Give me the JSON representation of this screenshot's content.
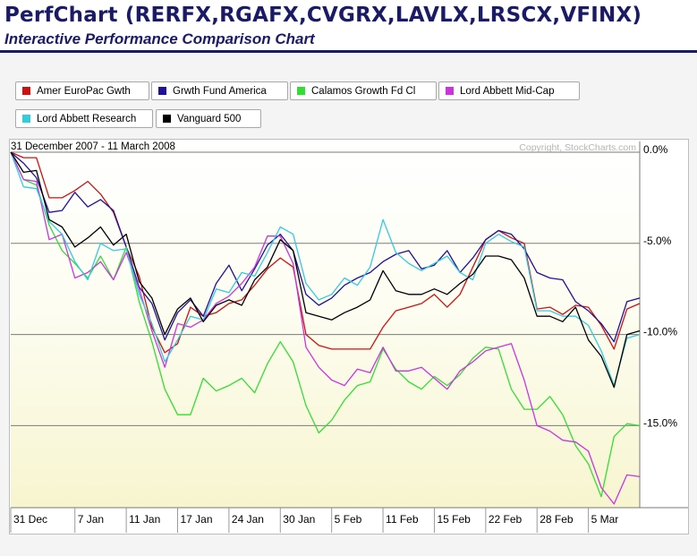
{
  "header": {
    "title": "PerfChart (RERFX,RGAFX,CVGRX,LAVLX,LRSCX,VFINX)",
    "subtitle": "Interactive Performance Comparison Chart"
  },
  "legend": [
    {
      "label": "Amer EuroPac Gwth",
      "color": "#d01010"
    },
    {
      "label": "Grwth Fund America",
      "color": "#20109a"
    },
    {
      "label": "Calamos Growth Fd Cl",
      "color": "#33dd33"
    },
    {
      "label": "Lord Abbett Mid-Cap",
      "color": "#cc33dd"
    },
    {
      "label": "Lord Abbett Research",
      "color": "#33ccdd"
    },
    {
      "label": "Vanguard 500",
      "color": "#000000"
    }
  ],
  "chart_data": {
    "type": "line",
    "date_range": "31 December 2007 - 11 March 2008",
    "copyright": "Copyright, StockCharts.com",
    "yticks": [
      0,
      -5,
      -10,
      -15
    ],
    "ytick_labels": [
      "0.0%",
      "-5.0%",
      "-10.0%",
      "-15.0%"
    ],
    "ylim": [
      -19.5,
      0
    ],
    "xticks": [
      {
        "label": "31 Dec",
        "i": 0
      },
      {
        "label": "7 Jan",
        "i": 5
      },
      {
        "label": "11 Jan",
        "i": 9
      },
      {
        "label": "17 Jan",
        "i": 13
      },
      {
        "label": "24 Jan",
        "i": 17
      },
      {
        "label": "30 Jan",
        "i": 21
      },
      {
        "label": "5 Feb",
        "i": 25
      },
      {
        "label": "11 Feb",
        "i": 29
      },
      {
        "label": "15 Feb",
        "i": 33
      },
      {
        "label": "22 Feb",
        "i": 37
      },
      {
        "label": "28 Feb",
        "i": 41
      },
      {
        "label": "5 Mar",
        "i": 45
      }
    ],
    "n_points": 50,
    "grid": true,
    "series": [
      {
        "name": "Amer EuroPac Gwth",
        "color": "#d01010",
        "values": [
          0,
          -0.3,
          -0.3,
          -2.5,
          -2.5,
          -2.1,
          -1.6,
          -2.3,
          -3.3,
          -5.2,
          -6.8,
          -9.6,
          -11.0,
          -10.5,
          -8.5,
          -9.0,
          -8.8,
          -8.3,
          -8.1,
          -7.3,
          -6.4,
          -5.8,
          -6.3,
          -10.0,
          -10.6,
          -10.8,
          -10.8,
          -10.8,
          -10.8,
          -9.6,
          -8.7,
          -8.5,
          -8.3,
          -7.8,
          -8.5,
          -7.8,
          -6.3,
          -4.8,
          -4.3,
          -4.7,
          -5.0,
          -8.6,
          -8.5,
          -8.9,
          -8.4,
          -8.5,
          -9.5,
          -10.8,
          -8.6,
          -8.3
        ]
      },
      {
        "name": "Grwth Fund America",
        "color": "#20109a",
        "values": [
          0,
          -0.6,
          -1.4,
          -3.3,
          -3.2,
          -2.2,
          -3.0,
          -2.6,
          -3.2,
          -5.2,
          -7.4,
          -8.3,
          -10.3,
          -8.8,
          -8.1,
          -9.0,
          -7.2,
          -6.2,
          -7.6,
          -6.4,
          -5.1,
          -4.5,
          -5.4,
          -7.8,
          -8.4,
          -8.0,
          -7.3,
          -6.9,
          -6.6,
          -6.0,
          -5.6,
          -5.4,
          -6.4,
          -6.2,
          -5.4,
          -6.6,
          -5.8,
          -4.8,
          -4.3,
          -4.5,
          -5.3,
          -6.6,
          -6.9,
          -7.0,
          -8.2,
          -8.7,
          -9.4,
          -10.4,
          -8.2,
          -8.0
        ]
      },
      {
        "name": "Calamos Growth Fd Cl",
        "color": "#33dd33",
        "values": [
          0,
          -1.5,
          -1.8,
          -4.0,
          -5.4,
          -6.1,
          -6.9,
          -5.7,
          -7.0,
          -5.2,
          -8.2,
          -10.4,
          -13.0,
          -14.4,
          -14.4,
          -12.4,
          -13.1,
          -12.8,
          -12.4,
          -13.2,
          -11.6,
          -10.4,
          -11.5,
          -13.9,
          -15.4,
          -14.7,
          -13.6,
          -12.8,
          -12.6,
          -10.8,
          -11.9,
          -12.6,
          -13.0,
          -12.3,
          -12.8,
          -12.2,
          -11.3,
          -10.7,
          -10.8,
          -13.0,
          -14.1,
          -14.1,
          -13.4,
          -14.4,
          -16.1,
          -17.1,
          -18.9,
          -15.6,
          -14.9,
          -15.0
        ]
      },
      {
        "name": "Lord Abbett Mid-Cap",
        "color": "#cc33dd",
        "values": [
          0,
          -1.5,
          -1.6,
          -4.8,
          -4.5,
          -6.9,
          -6.6,
          -6.0,
          -7.0,
          -5.5,
          -7.5,
          -9.8,
          -11.8,
          -9.4,
          -9.6,
          -9.2,
          -8.3,
          -7.9,
          -7.2,
          -6.3,
          -4.6,
          -4.6,
          -6.1,
          -10.7,
          -11.8,
          -12.5,
          -12.8,
          -11.9,
          -12.1,
          -10.7,
          -12.0,
          -12.0,
          -11.8,
          -12.4,
          -13.0,
          -12.0,
          -11.5,
          -10.9,
          -10.7,
          -10.5,
          -12.5,
          -15.0,
          -15.3,
          -15.8,
          -15.9,
          -16.4,
          -18.4,
          -19.3,
          -17.7,
          -17.8
        ]
      },
      {
        "name": "Lord Abbett Research",
        "color": "#33ccdd",
        "values": [
          0,
          -1.9,
          -2.0,
          -3.8,
          -4.5,
          -6.0,
          -7.0,
          -5.0,
          -5.4,
          -5.3,
          -7.8,
          -9.4,
          -11.5,
          -10.3,
          -9.0,
          -9.2,
          -7.5,
          -7.7,
          -6.6,
          -6.8,
          -5.5,
          -4.1,
          -4.5,
          -7.2,
          -8.1,
          -7.8,
          -6.9,
          -7.3,
          -6.3,
          -3.7,
          -5.5,
          -6.1,
          -6.5,
          -6.1,
          -5.7,
          -6.6,
          -7.0,
          -5.0,
          -4.5,
          -4.9,
          -5.2,
          -8.7,
          -8.7,
          -9.0,
          -9.0,
          -9.5,
          -10.9,
          -12.8,
          -10.2,
          -10.0
        ]
      },
      {
        "name": "Vanguard 500",
        "color": "#000000",
        "values": [
          0,
          -1.1,
          -1.0,
          -3.7,
          -4.1,
          -5.2,
          -4.7,
          -4.1,
          -5.1,
          -4.5,
          -7.1,
          -8.0,
          -10.0,
          -8.6,
          -8.0,
          -9.3,
          -8.4,
          -8.1,
          -8.4,
          -7.0,
          -6.3,
          -4.8,
          -5.4,
          -8.8,
          -9.0,
          -9.2,
          -8.8,
          -8.5,
          -8.1,
          -6.5,
          -7.6,
          -7.8,
          -7.8,
          -7.5,
          -7.8,
          -7.2,
          -6.7,
          -5.7,
          -5.7,
          -5.9,
          -6.9,
          -9.0,
          -9.0,
          -9.3,
          -8.5,
          -10.3,
          -11.2,
          -12.9,
          -10.0,
          -9.8
        ]
      }
    ]
  }
}
